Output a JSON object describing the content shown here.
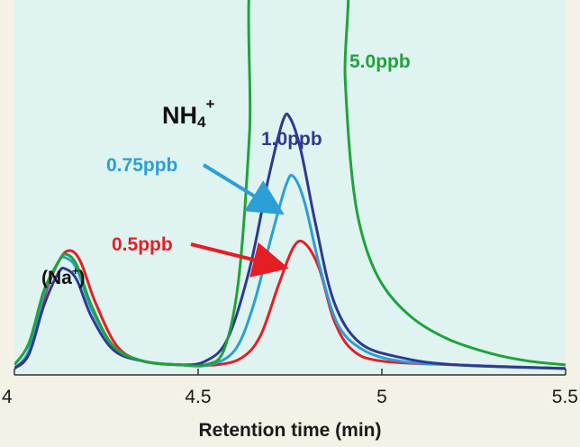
{
  "chart_data": {
    "type": "line",
    "xlabel": "Retention time (min)",
    "ylabel": "",
    "xlim": [
      4,
      5.5
    ],
    "ylim": [
      0,
      1
    ],
    "x_ticks": [
      "4",
      "4.5",
      "5",
      "5.5"
    ],
    "grid": false,
    "legend": "none",
    "colors": {
      "plot_bg": "#dff3f1",
      "page_bg": "#f4f1e6",
      "s0_5": "#e51e25",
      "s0_75": "#2b9fd6",
      "s1_0": "#2e3a8f",
      "s5_0": "#1fa33a"
    },
    "annotations": {
      "nh4_main": "NH",
      "nh4_sub": "4",
      "nh4_sup": "+",
      "na_open": "(Na",
      "na_sup": "+",
      "na_close": ")",
      "label_5_0": "5.0ppb",
      "label_1_0": "1.0ppb",
      "label_0_75": "0.75ppb",
      "label_0_5": "0.5ppb"
    },
    "series": [
      {
        "name": "0.5ppb",
        "color": "#e51e25",
        "points": [
          [
            4.0,
            0.01
          ],
          [
            4.04,
            0.05
          ],
          [
            4.08,
            0.2
          ],
          [
            4.12,
            0.3
          ],
          [
            4.15,
            0.33
          ],
          [
            4.18,
            0.3
          ],
          [
            4.22,
            0.19
          ],
          [
            4.28,
            0.07
          ],
          [
            4.35,
            0.03
          ],
          [
            4.45,
            0.02
          ],
          [
            4.55,
            0.02
          ],
          [
            4.62,
            0.04
          ],
          [
            4.67,
            0.1
          ],
          [
            4.72,
            0.24
          ],
          [
            4.76,
            0.34
          ],
          [
            4.79,
            0.35
          ],
          [
            4.83,
            0.28
          ],
          [
            4.87,
            0.14
          ],
          [
            4.92,
            0.06
          ],
          [
            5.0,
            0.03
          ],
          [
            5.2,
            0.02
          ],
          [
            5.5,
            0.01
          ]
        ]
      },
      {
        "name": "0.75ppb",
        "color": "#2b9fd6",
        "points": [
          [
            4.0,
            0.01
          ],
          [
            4.04,
            0.06
          ],
          [
            4.08,
            0.21
          ],
          [
            4.12,
            0.3
          ],
          [
            4.14,
            0.31
          ],
          [
            4.17,
            0.28
          ],
          [
            4.21,
            0.17
          ],
          [
            4.27,
            0.07
          ],
          [
            4.35,
            0.03
          ],
          [
            4.45,
            0.02
          ],
          [
            4.53,
            0.02
          ],
          [
            4.6,
            0.06
          ],
          [
            4.65,
            0.18
          ],
          [
            4.7,
            0.37
          ],
          [
            4.74,
            0.51
          ],
          [
            4.76,
            0.53
          ],
          [
            4.79,
            0.46
          ],
          [
            4.83,
            0.29
          ],
          [
            4.88,
            0.13
          ],
          [
            4.95,
            0.06
          ],
          [
            5.05,
            0.03
          ],
          [
            5.2,
            0.02
          ],
          [
            5.5,
            0.01
          ]
        ]
      },
      {
        "name": "1.0ppb",
        "color": "#2e3a8f",
        "points": [
          [
            4.0,
            0.01
          ],
          [
            4.04,
            0.05
          ],
          [
            4.08,
            0.18
          ],
          [
            4.12,
            0.27
          ],
          [
            4.14,
            0.28
          ],
          [
            4.17,
            0.25
          ],
          [
            4.21,
            0.15
          ],
          [
            4.27,
            0.06
          ],
          [
            4.35,
            0.03
          ],
          [
            4.45,
            0.02
          ],
          [
            4.52,
            0.03
          ],
          [
            4.58,
            0.09
          ],
          [
            4.64,
            0.28
          ],
          [
            4.69,
            0.52
          ],
          [
            4.73,
            0.68
          ],
          [
            4.75,
            0.69
          ],
          [
            4.78,
            0.6
          ],
          [
            4.82,
            0.4
          ],
          [
            4.87,
            0.19
          ],
          [
            4.94,
            0.08
          ],
          [
            5.05,
            0.04
          ],
          [
            5.2,
            0.02
          ],
          [
            5.5,
            0.01
          ]
        ]
      },
      {
        "name": "5.0ppb",
        "color": "#1fa33a",
        "points": [
          [
            4.0,
            0.02
          ],
          [
            4.04,
            0.08
          ],
          [
            4.08,
            0.22
          ],
          [
            4.12,
            0.3
          ],
          [
            4.14,
            0.32
          ],
          [
            4.17,
            0.29
          ],
          [
            4.21,
            0.18
          ],
          [
            4.27,
            0.07
          ],
          [
            4.35,
            0.03
          ],
          [
            4.45,
            0.02
          ],
          [
            4.52,
            0.02
          ],
          [
            4.57,
            0.06
          ],
          [
            4.61,
            0.25
          ],
          [
            4.64,
            0.65
          ],
          [
            4.66,
            1.15
          ],
          [
            4.89,
            1.15
          ],
          [
            4.9,
            0.8
          ],
          [
            4.92,
            0.52
          ],
          [
            4.95,
            0.36
          ],
          [
            5.0,
            0.24
          ],
          [
            5.08,
            0.15
          ],
          [
            5.18,
            0.09
          ],
          [
            5.3,
            0.05
          ],
          [
            5.4,
            0.03
          ],
          [
            5.5,
            0.02
          ]
        ]
      }
    ]
  }
}
